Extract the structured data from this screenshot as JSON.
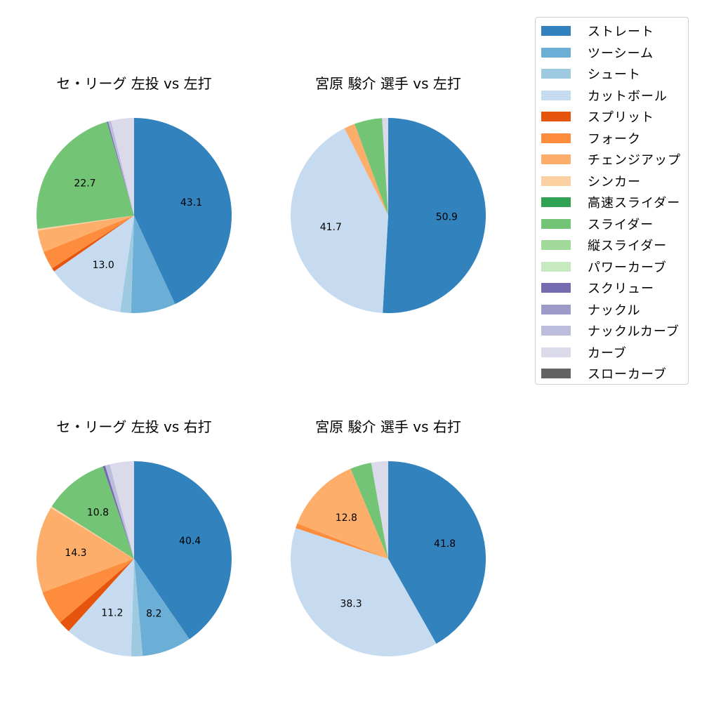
{
  "chart_data": [
    {
      "type": "pie",
      "title": "セ・リーグ 左投 vs 左打",
      "categories": [
        "ストレート",
        "ツーシーム",
        "シュート",
        "カットボール",
        "スプリット",
        "フォーク",
        "チェンジアップ",
        "シンカー",
        "スライダー",
        "スクリュー",
        "ナックルカーブ",
        "カーブ"
      ],
      "values": [
        43.1,
        7.4,
        1.8,
        13.0,
        0.6,
        3.0,
        3.6,
        0.3,
        22.7,
        0.2,
        0.5,
        3.8
      ],
      "labels_shown": [
        "43.1",
        "13.0",
        "22.7"
      ],
      "start_angle": 90,
      "direction": "clockwise"
    },
    {
      "type": "pie",
      "title": "宮原 駿介 選手 vs 左打",
      "categories": [
        "ストレート",
        "カットボール",
        "チェンジアップ",
        "スライダー",
        "カーブ"
      ],
      "values": [
        50.9,
        41.7,
        1.8,
        4.6,
        1.0
      ],
      "labels_shown": [
        "50.9",
        "41.7"
      ],
      "start_angle": 90,
      "direction": "clockwise"
    },
    {
      "type": "pie",
      "title": "セ・リーグ 左投 vs 右打",
      "categories": [
        "ストレート",
        "ツーシーム",
        "シュート",
        "カットボール",
        "スプリット",
        "フォーク",
        "チェンジアップ",
        "シンカー",
        "スライダー",
        "スクリュー",
        "ナックルカーブ",
        "カーブ"
      ],
      "values": [
        40.4,
        8.2,
        1.9,
        11.2,
        2.0,
        5.7,
        14.3,
        0.3,
        10.8,
        0.4,
        0.8,
        4.0
      ],
      "labels_shown": [
        "40.4",
        "8.2",
        "11.2",
        "14.3",
        "10.8"
      ],
      "start_angle": 90,
      "direction": "clockwise"
    },
    {
      "type": "pie",
      "title": "宮原 駿介 選手 vs 右打",
      "categories": [
        "ストレート",
        "カットボール",
        "フォーク",
        "チェンジアップ",
        "スライダー",
        "カーブ"
      ],
      "values": [
        41.8,
        38.3,
        0.8,
        12.8,
        3.5,
        2.8
      ],
      "labels_shown": [
        "41.8",
        "38.3",
        "12.8"
      ],
      "start_angle": 90,
      "direction": "clockwise"
    }
  ],
  "legend": {
    "items": [
      {
        "label": "ストレート",
        "color": "#3182bd"
      },
      {
        "label": "ツーシーム",
        "color": "#6baed6"
      },
      {
        "label": "シュート",
        "color": "#9ecae1"
      },
      {
        "label": "カットボール",
        "color": "#c6dbef"
      },
      {
        "label": "スプリット",
        "color": "#e6550d"
      },
      {
        "label": "フォーク",
        "color": "#fd8d3c"
      },
      {
        "label": "チェンジアップ",
        "color": "#fdae6b"
      },
      {
        "label": "シンカー",
        "color": "#fdd0a2"
      },
      {
        "label": "高速スライダー",
        "color": "#31a354"
      },
      {
        "label": "スライダー",
        "color": "#74c476"
      },
      {
        "label": "縦スライダー",
        "color": "#a1d99b"
      },
      {
        "label": "パワーカーブ",
        "color": "#c7e9c0"
      },
      {
        "label": "スクリュー",
        "color": "#756bb1"
      },
      {
        "label": "ナックル",
        "color": "#9e9ac8"
      },
      {
        "label": "ナックルカーブ",
        "color": "#bcbddc"
      },
      {
        "label": "カーブ",
        "color": "#dadaeb"
      },
      {
        "label": "スローカーブ",
        "color": "#636363"
      }
    ]
  }
}
